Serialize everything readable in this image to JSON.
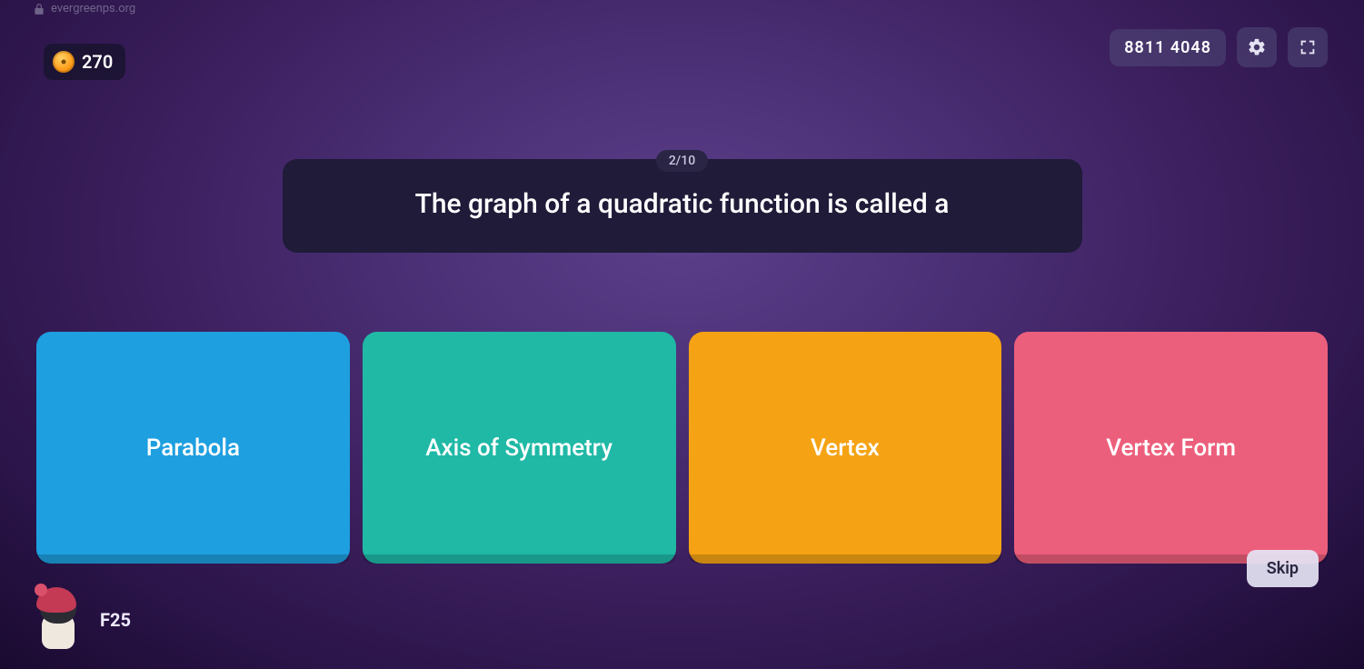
{
  "urlHint": "evergreenps.org",
  "coins": "270",
  "gameCode": "8811 4048",
  "progress": "2/10",
  "question": "The graph of a quadratic function is called a",
  "answers": [
    {
      "label": "Parabola",
      "bg": "#1e9fe0",
      "shadow": "#167fb5"
    },
    {
      "label": "Axis of Symmetry",
      "bg": "#1fb9a6",
      "shadow": "#169083"
    },
    {
      "label": "Vertex",
      "bg": "#f5a314",
      "shadow": "#c77f0a"
    },
    {
      "label": "Vertex Form",
      "bg": "#ec5f7c",
      "shadow": "#c34660"
    }
  ],
  "skipLabel": "Skip",
  "playerName": "F25"
}
